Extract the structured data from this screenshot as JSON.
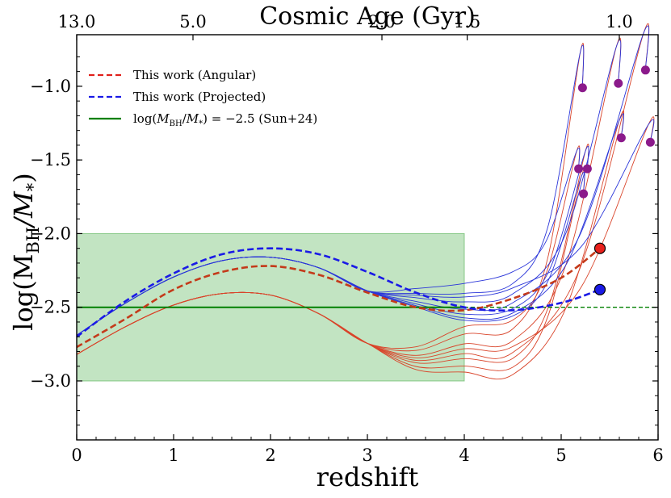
{
  "chart_data": {
    "type": "line",
    "title": "",
    "xlabel": "redshift",
    "ylabel_main": "log(M",
    "ylabel_sub": "BH",
    "ylabel_mid": "/M",
    "ylabel_sub2": "*",
    "ylabel_end": ")",
    "top_axis_label": "Cosmic Age (Gyr)",
    "xlim": [
      0,
      6
    ],
    "ylim": [
      -3.4,
      -0.65
    ],
    "x_ticks": [
      0,
      1,
      2,
      3,
      4,
      5,
      6
    ],
    "x_tick_labels": [
      "0",
      "1",
      "2",
      "3",
      "4",
      "5",
      "6"
    ],
    "y_ticks": [
      -3.0,
      -2.5,
      -2.0,
      -1.5,
      -1.0
    ],
    "y_tick_labels": [
      "−3.0",
      "−2.5",
      "−2.0",
      "−1.5",
      "−1.0"
    ],
    "top_ticks": [
      {
        "z": 0.0,
        "label": "13.0"
      },
      {
        "z": 1.2,
        "label": "5.0"
      },
      {
        "z": 3.15,
        "label": "2.0"
      },
      {
        "z": 4.03,
        "label": "1.5"
      },
      {
        "z": 5.6,
        "label": "1.0"
      }
    ],
    "shaded_region": {
      "x": [
        0,
        4
      ],
      "y": [
        -3.0,
        -2.0
      ],
      "color": "#5fb85f"
    },
    "reference_line": {
      "y": -2.5,
      "x_solid": [
        0,
        4
      ],
      "x_dashed": [
        4,
        6
      ],
      "color": "#008000"
    },
    "legend": [
      {
        "label": "This work (Angular)",
        "style": "dashed",
        "color": "#e0201b"
      },
      {
        "label": "This work (Projected)",
        "style": "dashed",
        "color": "#1a1ae6"
      },
      {
        "label_parts": [
          "log(",
          "M",
          "BH",
          "/",
          "M",
          "*",
          ") = −2.5 (Sun+24)"
        ],
        "style": "solid",
        "color": "#008000"
      }
    ],
    "series": [
      {
        "name": "This work (Angular)",
        "color": "#c43a1a",
        "style": "dashed",
        "x": [
          0,
          0.5,
          1.0,
          1.5,
          2.0,
          2.5,
          3.0,
          3.5,
          4.0,
          4.5,
          5.0,
          5.4
        ],
        "y": [
          -2.77,
          -2.58,
          -2.38,
          -2.26,
          -2.22,
          -2.28,
          -2.4,
          -2.5,
          -2.52,
          -2.44,
          -2.3,
          -2.1
        ]
      },
      {
        "name": "This work (Projected)",
        "color": "#1a1ae6",
        "style": "dashed",
        "x": [
          0,
          0.5,
          1.0,
          1.5,
          2.0,
          2.5,
          3.0,
          3.5,
          4.0,
          4.5,
          5.0,
          5.4
        ],
        "y": [
          -2.7,
          -2.46,
          -2.27,
          -2.14,
          -2.1,
          -2.14,
          -2.26,
          -2.4,
          -2.5,
          -2.52,
          -2.47,
          -2.38
        ]
      }
    ],
    "endpoints": [
      {
        "name": "angular-endpoint",
        "x": 5.4,
        "y": -2.1,
        "color": "#e8201b"
      },
      {
        "name": "projected-endpoint",
        "x": 5.4,
        "y": -2.38,
        "color": "#1a1ae6"
      }
    ],
    "purple_points": [
      {
        "x": 5.22,
        "y": -1.01
      },
      {
        "x": 5.59,
        "y": -0.98
      },
      {
        "x": 5.87,
        "y": -0.89
      },
      {
        "x": 5.18,
        "y": -1.56
      },
      {
        "x": 5.27,
        "y": -1.56
      },
      {
        "x": 5.23,
        "y": -1.73
      },
      {
        "x": 5.62,
        "y": -1.35
      },
      {
        "x": 5.92,
        "y": -1.38
      }
    ],
    "purple_color": "#8b1a8b",
    "thin_red_curves": [
      {
        "mid": -2.62,
        "p": [
          5.22,
          -1.01
        ]
      },
      {
        "mid": -2.7,
        "p": [
          5.59,
          -0.98
        ]
      },
      {
        "mid": -2.78,
        "p": [
          5.87,
          -0.89
        ]
      },
      {
        "mid": -2.56,
        "p": [
          5.18,
          -1.56
        ]
      },
      {
        "mid": -2.82,
        "p": [
          5.27,
          -1.56
        ]
      },
      {
        "mid": -2.88,
        "p": [
          5.23,
          -1.73
        ]
      },
      {
        "mid": -2.93,
        "p": [
          5.62,
          -1.35
        ]
      },
      {
        "mid": -2.74,
        "p": [
          5.92,
          -1.38
        ]
      }
    ],
    "thin_blue_curves": [
      {
        "mid": -2.33,
        "p": [
          5.22,
          -1.01
        ]
      },
      {
        "mid": -2.4,
        "p": [
          5.59,
          -0.98
        ]
      },
      {
        "mid": -2.46,
        "p": [
          5.87,
          -0.89
        ]
      },
      {
        "mid": -2.25,
        "p": [
          5.18,
          -1.56
        ]
      },
      {
        "mid": -2.5,
        "p": [
          5.27,
          -1.56
        ]
      },
      {
        "mid": -2.55,
        "p": [
          5.23,
          -1.73
        ]
      },
      {
        "mid": -2.53,
        "p": [
          5.62,
          -1.35
        ]
      },
      {
        "mid": -2.36,
        "p": [
          5.92,
          -1.38
        ]
      }
    ]
  }
}
